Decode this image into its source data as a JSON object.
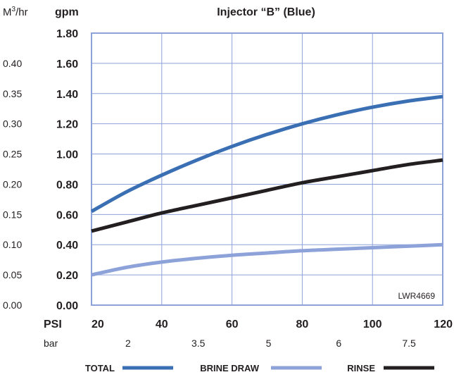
{
  "chart_data": {
    "type": "line",
    "title": "Injector “B” (Blue)",
    "left_unit_base": "M",
    "left_unit_exp": "3",
    "left_unit_suffix": "/hr",
    "ylabel": "gpm",
    "xlabel": "PSI",
    "secondary_xlabel": "bar",
    "watermark": "LWR4669",
    "xlim": [
      20,
      120
    ],
    "ylim": [
      0,
      1.8
    ],
    "grid": true,
    "x_ticks": [
      {
        "value": 20,
        "label": "20"
      },
      {
        "value": 40,
        "label": "40"
      },
      {
        "value": 60,
        "label": "60"
      },
      {
        "value": 80,
        "label": "80"
      },
      {
        "value": 100,
        "label": "100"
      },
      {
        "value": 120,
        "label": "120"
      }
    ],
    "bar_ticks": [
      {
        "value": 30,
        "label": "2"
      },
      {
        "value": 50,
        "label": "3.5"
      },
      {
        "value": 70,
        "label": "5"
      },
      {
        "value": 90,
        "label": "6"
      },
      {
        "value": 110,
        "label": "7.5"
      }
    ],
    "y_ticks": [
      {
        "value": 0.0,
        "label": "0.00"
      },
      {
        "value": 0.2,
        "label": "0.20"
      },
      {
        "value": 0.4,
        "label": "0.40"
      },
      {
        "value": 0.6,
        "label": "0.60"
      },
      {
        "value": 0.8,
        "label": "0.80"
      },
      {
        "value": 1.0,
        "label": "1.00"
      },
      {
        "value": 1.2,
        "label": "1.20"
      },
      {
        "value": 1.4,
        "label": "1.40"
      },
      {
        "value": 1.6,
        "label": "1.60"
      },
      {
        "value": 1.8,
        "label": "1.80"
      }
    ],
    "m3_ticks": [
      {
        "value": 0.0,
        "label": "0.00"
      },
      {
        "value": 0.2,
        "label": "0.05"
      },
      {
        "value": 0.4,
        "label": "0.10"
      },
      {
        "value": 0.6,
        "label": "0.15"
      },
      {
        "value": 0.8,
        "label": "0.20"
      },
      {
        "value": 1.0,
        "label": "0.25"
      },
      {
        "value": 1.2,
        "label": "0.30"
      },
      {
        "value": 1.4,
        "label": "0.35"
      },
      {
        "value": 1.6,
        "label": "0.40"
      }
    ],
    "series": [
      {
        "name": "TOTAL",
        "color": "#3a6fb4",
        "x": [
          20,
          30,
          40,
          50,
          60,
          70,
          80,
          90,
          100,
          110,
          120
        ],
        "y": [
          0.62,
          0.75,
          0.86,
          0.96,
          1.05,
          1.13,
          1.2,
          1.26,
          1.31,
          1.35,
          1.38
        ]
      },
      {
        "name": "BRINE DRAW",
        "color": "#8da2d9",
        "x": [
          20,
          30,
          40,
          50,
          60,
          70,
          80,
          90,
          100,
          110,
          120
        ],
        "y": [
          0.2,
          0.25,
          0.285,
          0.31,
          0.33,
          0.345,
          0.36,
          0.37,
          0.38,
          0.39,
          0.4
        ]
      },
      {
        "name": "RINSE",
        "color": "#231f20",
        "x": [
          20,
          30,
          40,
          50,
          60,
          70,
          80,
          90,
          100,
          110,
          120
        ],
        "y": [
          0.49,
          0.55,
          0.61,
          0.66,
          0.71,
          0.76,
          0.81,
          0.85,
          0.89,
          0.93,
          0.96
        ]
      }
    ]
  }
}
